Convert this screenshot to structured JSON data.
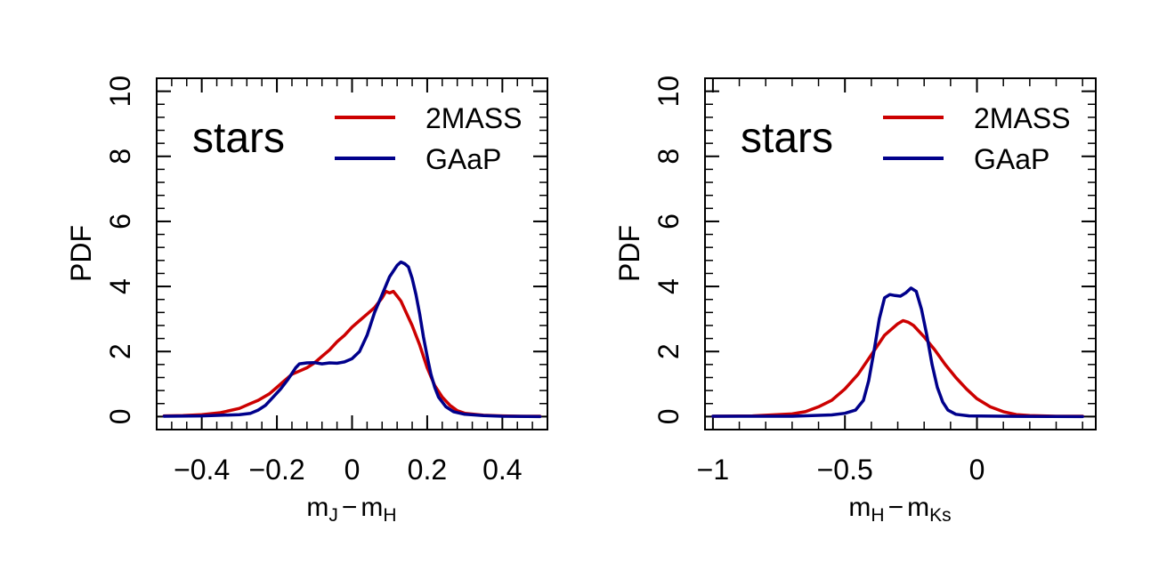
{
  "figure": {
    "background": "#ffffff"
  },
  "chart_data": [
    {
      "type": "line",
      "ylabel": "PDF",
      "xlabel_main": "m",
      "xlabel_sub1": "J",
      "xlabel_minus": "−",
      "xlabel_main2": "m",
      "xlabel_sub2": "H",
      "annotation": "stars",
      "xlim": [
        -0.52,
        0.52
      ],
      "ylim": [
        -0.4,
        10.4
      ],
      "xticks": [
        -0.4,
        -0.2,
        0,
        0.2,
        0.4
      ],
      "xtick_labels": [
        "−0.4",
        "−0.2",
        "0",
        "0.2",
        "0.4"
      ],
      "x_minor_step": 0.04,
      "yticks": [
        0,
        2,
        4,
        6,
        8,
        10
      ],
      "ytick_labels": [
        "0",
        "2",
        "4",
        "6",
        "8",
        "10"
      ],
      "y_minor_step": 0.4,
      "legend_position": "top-right",
      "series": [
        {
          "name": "2MASS",
          "color": "#cc0000",
          "points": [
            [
              -0.5,
              0.02
            ],
            [
              -0.45,
              0.03
            ],
            [
              -0.4,
              0.06
            ],
            [
              -0.35,
              0.12
            ],
            [
              -0.3,
              0.25
            ],
            [
              -0.27,
              0.4
            ],
            [
              -0.25,
              0.5
            ],
            [
              -0.22,
              0.7
            ],
            [
              -0.2,
              0.9
            ],
            [
              -0.18,
              1.1
            ],
            [
              -0.16,
              1.3
            ],
            [
              -0.14,
              1.4
            ],
            [
              -0.12,
              1.5
            ],
            [
              -0.1,
              1.65
            ],
            [
              -0.08,
              1.85
            ],
            [
              -0.06,
              2.05
            ],
            [
              -0.04,
              2.3
            ],
            [
              -0.02,
              2.5
            ],
            [
              0,
              2.75
            ],
            [
              0.02,
              2.95
            ],
            [
              0.04,
              3.15
            ],
            [
              0.06,
              3.35
            ],
            [
              0.08,
              3.65
            ],
            [
              0.09,
              3.85
            ],
            [
              0.1,
              3.8
            ],
            [
              0.11,
              3.85
            ],
            [
              0.12,
              3.7
            ],
            [
              0.13,
              3.55
            ],
            [
              0.14,
              3.3
            ],
            [
              0.16,
              2.8
            ],
            [
              0.18,
              2.2
            ],
            [
              0.2,
              1.5
            ],
            [
              0.22,
              0.95
            ],
            [
              0.24,
              0.6
            ],
            [
              0.26,
              0.35
            ],
            [
              0.28,
              0.18
            ],
            [
              0.3,
              0.1
            ],
            [
              0.35,
              0.04
            ],
            [
              0.4,
              0.02
            ],
            [
              0.45,
              0.01
            ],
            [
              0.5,
              0.01
            ]
          ]
        },
        {
          "name": "GAaP",
          "color": "#00008b",
          "points": [
            [
              -0.5,
              0.01
            ],
            [
              -0.4,
              0.02
            ],
            [
              -0.3,
              0.06
            ],
            [
              -0.27,
              0.1
            ],
            [
              -0.25,
              0.2
            ],
            [
              -0.23,
              0.35
            ],
            [
              -0.21,
              0.6
            ],
            [
              -0.19,
              0.85
            ],
            [
              -0.17,
              1.15
            ],
            [
              -0.15,
              1.5
            ],
            [
              -0.14,
              1.62
            ],
            [
              -0.12,
              1.65
            ],
            [
              -0.1,
              1.66
            ],
            [
              -0.08,
              1.62
            ],
            [
              -0.06,
              1.65
            ],
            [
              -0.04,
              1.64
            ],
            [
              -0.02,
              1.68
            ],
            [
              0,
              1.78
            ],
            [
              0.02,
              2.0
            ],
            [
              0.04,
              2.5
            ],
            [
              0.06,
              3.2
            ],
            [
              0.08,
              3.75
            ],
            [
              0.1,
              4.3
            ],
            [
              0.12,
              4.65
            ],
            [
              0.13,
              4.75
            ],
            [
              0.14,
              4.7
            ],
            [
              0.15,
              4.6
            ],
            [
              0.16,
              4.25
            ],
            [
              0.17,
              3.75
            ],
            [
              0.18,
              3.15
            ],
            [
              0.19,
              2.45
            ],
            [
              0.2,
              1.85
            ],
            [
              0.21,
              1.3
            ],
            [
              0.22,
              0.9
            ],
            [
              0.23,
              0.6
            ],
            [
              0.25,
              0.3
            ],
            [
              0.27,
              0.15
            ],
            [
              0.3,
              0.07
            ],
            [
              0.35,
              0.03
            ],
            [
              0.4,
              0.01
            ],
            [
              0.5,
              0.0
            ]
          ]
        }
      ]
    },
    {
      "type": "line",
      "ylabel": "PDF",
      "xlabel_main": "m",
      "xlabel_sub1": "H",
      "xlabel_minus": "−",
      "xlabel_main2": "m",
      "xlabel_sub2": "Ks",
      "annotation": "stars",
      "xlim": [
        -1.03,
        0.45
      ],
      "ylim": [
        -0.4,
        10.4
      ],
      "xticks": [
        -1,
        -0.5,
        0
      ],
      "xtick_labels": [
        "−1",
        "−0.5",
        "0"
      ],
      "x_minor_step": 0.1,
      "yticks": [
        0,
        2,
        4,
        6,
        8,
        10
      ],
      "ytick_labels": [
        "0",
        "2",
        "4",
        "6",
        "8",
        "10"
      ],
      "y_minor_step": 0.4,
      "legend_position": "top-right",
      "series": [
        {
          "name": "2MASS",
          "color": "#cc0000",
          "points": [
            [
              -1.0,
              0.01
            ],
            [
              -0.85,
              0.02
            ],
            [
              -0.7,
              0.08
            ],
            [
              -0.65,
              0.15
            ],
            [
              -0.6,
              0.3
            ],
            [
              -0.55,
              0.5
            ],
            [
              -0.5,
              0.85
            ],
            [
              -0.45,
              1.3
            ],
            [
              -0.4,
              1.9
            ],
            [
              -0.35,
              2.5
            ],
            [
              -0.3,
              2.85
            ],
            [
              -0.28,
              2.95
            ],
            [
              -0.26,
              2.9
            ],
            [
              -0.24,
              2.8
            ],
            [
              -0.2,
              2.45
            ],
            [
              -0.16,
              2.05
            ],
            [
              -0.12,
              1.6
            ],
            [
              -0.08,
              1.2
            ],
            [
              -0.04,
              0.85
            ],
            [
              0,
              0.55
            ],
            [
              0.05,
              0.3
            ],
            [
              0.1,
              0.15
            ],
            [
              0.15,
              0.06
            ],
            [
              0.2,
              0.03
            ],
            [
              0.3,
              0.01
            ],
            [
              0.4,
              0.01
            ]
          ]
        },
        {
          "name": "GAaP",
          "color": "#00008b",
          "points": [
            [
              -1.0,
              0.01
            ],
            [
              -0.7,
              0.01
            ],
            [
              -0.55,
              0.05
            ],
            [
              -0.5,
              0.1
            ],
            [
              -0.46,
              0.2
            ],
            [
              -0.43,
              0.5
            ],
            [
              -0.41,
              1.1
            ],
            [
              -0.39,
              2.0
            ],
            [
              -0.37,
              3.0
            ],
            [
              -0.35,
              3.65
            ],
            [
              -0.33,
              3.75
            ],
            [
              -0.31,
              3.72
            ],
            [
              -0.29,
              3.7
            ],
            [
              -0.27,
              3.8
            ],
            [
              -0.25,
              3.95
            ],
            [
              -0.23,
              3.85
            ],
            [
              -0.21,
              3.3
            ],
            [
              -0.19,
              2.5
            ],
            [
              -0.17,
              1.6
            ],
            [
              -0.15,
              0.9
            ],
            [
              -0.13,
              0.45
            ],
            [
              -0.11,
              0.2
            ],
            [
              -0.08,
              0.07
            ],
            [
              -0.03,
              0.02
            ],
            [
              0.1,
              0.01
            ],
            [
              0.4,
              0.0
            ]
          ]
        }
      ]
    }
  ]
}
